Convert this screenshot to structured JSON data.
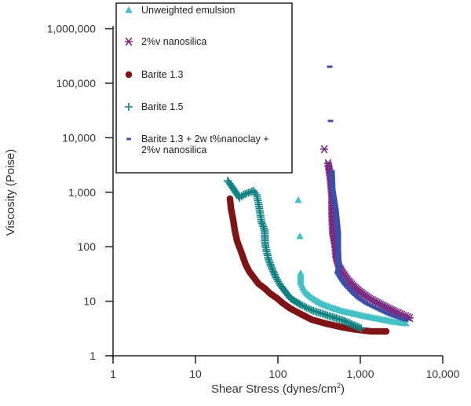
{
  "chart_data": {
    "type": "scatter",
    "title": "",
    "xlabel": "Shear Stress (dynes/cm",
    "xlabel_superscript": "2",
    "xlabel_suffix": ")",
    "ylabel": "Viscosity (Poise)",
    "xscale": "log",
    "yscale": "log",
    "xlim": [
      1,
      10000
    ],
    "ylim": [
      1,
      1000000
    ],
    "grid": false,
    "legend_position": "top-left",
    "x_ticks": [
      {
        "value": 1,
        "label": "1"
      },
      {
        "value": 10,
        "label": "10"
      },
      {
        "value": 100,
        "label": "100"
      },
      {
        "value": 1000,
        "label": "1,000"
      },
      {
        "value": 10000,
        "label": "10,000"
      }
    ],
    "y_ticks": [
      {
        "value": 1,
        "label": "1"
      },
      {
        "value": 10,
        "label": "10"
      },
      {
        "value": 100,
        "label": "100"
      },
      {
        "value": 1000,
        "label": "1,000"
      },
      {
        "value": 10000,
        "label": "10,000"
      },
      {
        "value": 100000,
        "label": "100,000"
      },
      {
        "value": 1000000,
        "label": "1,000,000"
      }
    ],
    "series": [
      {
        "name": "Unweighted emulsion",
        "legend_lines": [
          "Unweighted emulsion"
        ],
        "marker": "triangle",
        "color": "#45c1c4",
        "x": [
          177,
          185,
          189,
          189,
          200,
          220,
          250,
          293,
          350,
          454,
          600,
          877,
          1200,
          1849,
          2500,
          3565
        ],
        "y": [
          713,
          155,
          32.6,
          21.9,
          18,
          14.2,
          12,
          10.2,
          8.8,
          7.57,
          6.6,
          5.81,
          5.2,
          4.6,
          4.2,
          3.9
        ]
      },
      {
        "name": "2%v nanosilica",
        "legend_lines": [
          "2%v nanosilica"
        ],
        "marker": "asterisk",
        "color": "#7b2d83",
        "x": [
          365,
          407,
          410,
          415,
          435,
          454,
          454,
          464,
          496,
          507,
          553,
          620,
          705,
          850,
          1023,
          1300,
          1694,
          2100,
          2624,
          3200,
          3981
        ],
        "y": [
          6160,
          3388,
          3100,
          2900,
          1746,
          841,
          393,
          177,
          104,
          65.4,
          42.5,
          32,
          24.2,
          18,
          14.2,
          11,
          8.93,
          7.5,
          6.41,
          5.6,
          4.92
        ]
      },
      {
        "name": "Barite 1.3",
        "legend_lines": [
          "Barite 1.3"
        ],
        "marker": "circle",
        "color": "#7e1416",
        "x": [
          26.2,
          27,
          28.7,
          30,
          32.0,
          35.7,
          40.7,
          45,
          50.7,
          58,
          68.9,
          80,
          97.8,
          115,
          142,
          190,
          257,
          380,
          617,
          900,
          1359,
          2061
        ],
        "y": [
          762,
          500,
          311,
          200,
          127,
          82,
          47,
          35,
          27.6,
          21,
          17.3,
          14,
          11.3,
          9.2,
          7.32,
          5.8,
          4.6,
          3.9,
          3.3,
          3.0,
          2.8,
          2.8
        ]
      },
      {
        "name": "Barite 1.5",
        "legend_lines": [
          "Barite 1.5"
        ],
        "marker": "plus",
        "color": "#0f8180",
        "x": [
          24.6,
          28.7,
          34.2,
          38.1,
          44,
          50.7,
          55.3,
          59.1,
          63.1,
          68.9,
          70.5,
          76.9,
          85.8,
          95,
          106.8,
          125,
          142,
          190,
          257,
          400,
          617,
          1023
        ],
        "y": [
          1634,
          1172,
          787,
          899,
          980,
          1061,
          899,
          547,
          291,
          202,
          104,
          59,
          38,
          27,
          19.8,
          14.5,
          11.3,
          8.6,
          6.85,
          5.5,
          4.45,
          3.19
        ]
      },
      {
        "name": "Barite 1.3 + 2w t%nanoclay + 2%v nanosilica",
        "legend_lines": [
          "Barite 1.3 + 2w t%nanoclay +",
          "2%v nanosilica"
        ],
        "marker": "dash",
        "color": "#3b4fa8",
        "x": [
          425,
          435,
          454,
          464,
          507,
          541,
          541,
          553,
          526,
          580,
          659,
          800,
          957,
          1200,
          1585,
          2300,
          3565
        ],
        "y": [
          200900,
          20340,
          2432,
          1097,
          479,
          177,
          91,
          42.5,
          33.7,
          26,
          19.8,
          14.5,
          11.3,
          9,
          7.32,
          5.6,
          4.45
        ]
      }
    ]
  }
}
